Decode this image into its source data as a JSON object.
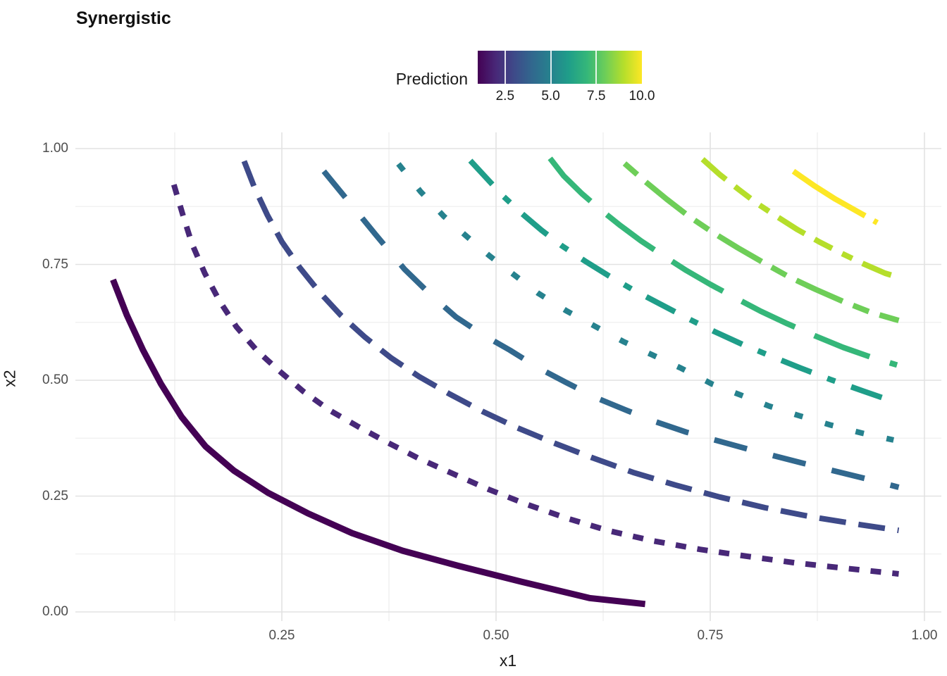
{
  "title": "Synergistic",
  "legend": {
    "title": "Prediction",
    "tick_labels": [
      "2.5",
      "5.0",
      "7.5",
      "10.0"
    ],
    "tick_values": [
      2.5,
      5.0,
      7.5,
      10.0
    ],
    "domain": [
      1.0,
      10.0
    ],
    "gradient_colors": [
      "#440154",
      "#482878",
      "#3e4a89",
      "#31688e",
      "#26828e",
      "#1f9e89",
      "#35b779",
      "#6ece58",
      "#b5de2b",
      "#fde725"
    ]
  },
  "axes": {
    "x": {
      "title": "x1",
      "tick_labels": [
        "0.25",
        "0.50",
        "0.75",
        "1.00"
      ],
      "tick_values": [
        0.25,
        0.5,
        0.75,
        1.0
      ],
      "minor_values": [
        0.125,
        0.375,
        0.625,
        0.875
      ],
      "range": [
        0.0,
        1.01
      ]
    },
    "y": {
      "title": "x2",
      "tick_labels": [
        "1.00",
        "0.75",
        "0.50",
        "0.25",
        "0.00"
      ],
      "tick_values": [
        1.0,
        0.75,
        0.5,
        0.25,
        0.0
      ],
      "minor_values": [
        0.875,
        0.625,
        0.375,
        0.125
      ],
      "range": [
        0.0,
        1.02
      ]
    }
  },
  "colors": {
    "background": "#ffffff",
    "grid_major": "#e2e2e2",
    "grid_minor": "#efefef",
    "tick_text": "#4d4d4d",
    "text": "#1a1a1a"
  },
  "chart_data": {
    "type": "line",
    "subtype": "contour",
    "title": "Synergistic",
    "xlabel": "x1",
    "ylabel": "x2",
    "legend_title": "Prediction",
    "legend_position": "top",
    "grid": true,
    "xlim": [
      0.0,
      1.01
    ],
    "ylim": [
      0.0,
      1.02
    ],
    "series": [
      {
        "name": "1",
        "level": 1,
        "color": "#440154",
        "linetype": "solid",
        "dash": "",
        "width": 9,
        "points": [
          [
            0.053,
            0.717
          ],
          [
            0.069,
            0.641
          ],
          [
            0.088,
            0.565
          ],
          [
            0.109,
            0.492
          ],
          [
            0.133,
            0.421
          ],
          [
            0.161,
            0.357
          ],
          [
            0.194,
            0.305
          ],
          [
            0.234,
            0.257
          ],
          [
            0.28,
            0.213
          ],
          [
            0.332,
            0.17
          ],
          [
            0.391,
            0.132
          ],
          [
            0.457,
            0.099
          ],
          [
            0.53,
            0.065
          ],
          [
            0.609,
            0.03
          ],
          [
            0.674,
            0.017
          ]
        ]
      },
      {
        "name": "2",
        "level": 2,
        "color": "#482878",
        "linetype": "22",
        "dash": "15 16",
        "width": 8,
        "points": [
          [
            0.124,
            0.922
          ],
          [
            0.134,
            0.86
          ],
          [
            0.145,
            0.795
          ],
          [
            0.16,
            0.731
          ],
          [
            0.177,
            0.672
          ],
          [
            0.197,
            0.615
          ],
          [
            0.221,
            0.564
          ],
          [
            0.247,
            0.52
          ],
          [
            0.275,
            0.476
          ],
          [
            0.306,
            0.435
          ],
          [
            0.339,
            0.4
          ],
          [
            0.373,
            0.366
          ],
          [
            0.41,
            0.331
          ],
          [
            0.45,
            0.298
          ],
          [
            0.492,
            0.264
          ],
          [
            0.536,
            0.232
          ],
          [
            0.583,
            0.202
          ],
          [
            0.632,
            0.175
          ],
          [
            0.684,
            0.153
          ],
          [
            0.738,
            0.135
          ],
          [
            0.793,
            0.12
          ],
          [
            0.849,
            0.106
          ],
          [
            0.908,
            0.094
          ],
          [
            0.97,
            0.082
          ]
        ]
      },
      {
        "name": "3",
        "level": 3,
        "color": "#3e4a89",
        "linetype": "42",
        "dash": "38 18",
        "width": 8,
        "points": [
          [
            0.206,
            0.973
          ],
          [
            0.218,
            0.916
          ],
          [
            0.233,
            0.857
          ],
          [
            0.25,
            0.799
          ],
          [
            0.271,
            0.743
          ],
          [
            0.294,
            0.69
          ],
          [
            0.319,
            0.64
          ],
          [
            0.347,
            0.593
          ],
          [
            0.377,
            0.549
          ],
          [
            0.41,
            0.508
          ],
          [
            0.446,
            0.47
          ],
          [
            0.484,
            0.433
          ],
          [
            0.524,
            0.398
          ],
          [
            0.567,
            0.365
          ],
          [
            0.612,
            0.333
          ],
          [
            0.66,
            0.301
          ],
          [
            0.709,
            0.274
          ],
          [
            0.761,
            0.248
          ],
          [
            0.814,
            0.225
          ],
          [
            0.869,
            0.205
          ],
          [
            0.926,
            0.188
          ],
          [
            0.97,
            0.176
          ]
        ]
      },
      {
        "name": "4",
        "level": 4,
        "color": "#31688e",
        "linetype": "44",
        "dash": "48 38",
        "width": 8,
        "points": [
          [
            0.299,
            0.951
          ],
          [
            0.327,
            0.888
          ],
          [
            0.36,
            0.813
          ],
          [
            0.393,
            0.74
          ],
          [
            0.424,
            0.684
          ],
          [
            0.453,
            0.637
          ],
          [
            0.484,
            0.599
          ],
          [
            0.516,
            0.565
          ],
          [
            0.549,
            0.527
          ],
          [
            0.582,
            0.495
          ],
          [
            0.617,
            0.462
          ],
          [
            0.651,
            0.436
          ],
          [
            0.687,
            0.41
          ],
          [
            0.722,
            0.388
          ],
          [
            0.793,
            0.352
          ],
          [
            0.858,
            0.321
          ],
          [
            0.933,
            0.287
          ],
          [
            0.97,
            0.269
          ]
        ]
      },
      {
        "name": "5",
        "level": 5,
        "color": "#26828e",
        "linetype": "13",
        "dash": "12 33",
        "width": 8,
        "points": [
          [
            0.386,
            0.967
          ],
          [
            0.412,
            0.907
          ],
          [
            0.439,
            0.854
          ],
          [
            0.466,
            0.81
          ],
          [
            0.492,
            0.769
          ],
          [
            0.52,
            0.729
          ],
          [
            0.549,
            0.688
          ],
          [
            0.582,
            0.65
          ],
          [
            0.615,
            0.617
          ],
          [
            0.648,
            0.584
          ],
          [
            0.682,
            0.555
          ],
          [
            0.716,
            0.526
          ],
          [
            0.752,
            0.492
          ],
          [
            0.787,
            0.467
          ],
          [
            0.819,
            0.444
          ],
          [
            0.853,
            0.424
          ],
          [
            0.891,
            0.403
          ],
          [
            0.927,
            0.386
          ],
          [
            0.964,
            0.371
          ]
        ]
      },
      {
        "name": "6",
        "level": 6,
        "color": "#1f9e89",
        "linetype": "1343",
        "dash": "46 24 12 24",
        "width": 8,
        "points": [
          [
            0.47,
            0.974
          ],
          [
            0.488,
            0.938
          ],
          [
            0.508,
            0.898
          ],
          [
            0.53,
            0.86
          ],
          [
            0.553,
            0.824
          ],
          [
            0.577,
            0.79
          ],
          [
            0.604,
            0.757
          ],
          [
            0.632,
            0.725
          ],
          [
            0.661,
            0.694
          ],
          [
            0.692,
            0.664
          ],
          [
            0.723,
            0.634
          ],
          [
            0.755,
            0.605
          ],
          [
            0.788,
            0.577
          ],
          [
            0.821,
            0.552
          ],
          [
            0.856,
            0.526
          ],
          [
            0.891,
            0.501
          ],
          [
            0.928,
            0.477
          ],
          [
            0.964,
            0.454
          ]
        ]
      },
      {
        "name": "7",
        "level": 7,
        "color": "#35b779",
        "linetype": "73",
        "dash": "84 30",
        "width": 8,
        "points": [
          [
            0.563,
            0.979
          ],
          [
            0.579,
            0.941
          ],
          [
            0.6,
            0.903
          ],
          [
            0.622,
            0.868
          ],
          [
            0.645,
            0.834
          ],
          [
            0.669,
            0.801
          ],
          [
            0.695,
            0.769
          ],
          [
            0.722,
            0.737
          ],
          [
            0.75,
            0.707
          ],
          [
            0.779,
            0.678
          ],
          [
            0.809,
            0.649
          ],
          [
            0.84,
            0.622
          ],
          [
            0.872,
            0.596
          ],
          [
            0.905,
            0.571
          ],
          [
            0.939,
            0.549
          ],
          [
            0.968,
            0.533
          ]
        ]
      },
      {
        "name": "8",
        "level": 8,
        "color": "#6ece58",
        "linetype": "2262",
        "dash": "24 16 72 16",
        "width": 8,
        "points": [
          [
            0.65,
            0.968
          ],
          [
            0.674,
            0.929
          ],
          [
            0.699,
            0.891
          ],
          [
            0.725,
            0.854
          ],
          [
            0.753,
            0.819
          ],
          [
            0.782,
            0.786
          ],
          [
            0.812,
            0.754
          ],
          [
            0.842,
            0.723
          ],
          [
            0.873,
            0.696
          ],
          [
            0.905,
            0.67
          ],
          [
            0.938,
            0.646
          ],
          [
            0.97,
            0.629
          ]
        ]
      },
      {
        "name": "9",
        "level": 9,
        "color": "#b5de2b",
        "linetype": "12223242",
        "dash": "44 16 28 16 16 16",
        "width": 8,
        "points": [
          [
            0.741,
            0.977
          ],
          [
            0.761,
            0.944
          ],
          [
            0.783,
            0.912
          ],
          [
            0.805,
            0.881
          ],
          [
            0.828,
            0.853
          ],
          [
            0.852,
            0.825
          ],
          [
            0.877,
            0.799
          ],
          [
            0.902,
            0.775
          ],
          [
            0.928,
            0.752
          ],
          [
            0.954,
            0.731
          ],
          [
            0.97,
            0.722
          ]
        ]
      },
      {
        "name": "10",
        "level": 10,
        "color": "#fde725",
        "linetype": "F282",
        "dash": "120 14 64 14",
        "width": 8,
        "points": [
          [
            0.847,
            0.951
          ],
          [
            0.872,
            0.919
          ],
          [
            0.896,
            0.891
          ],
          [
            0.921,
            0.865
          ],
          [
            0.945,
            0.84
          ]
        ]
      }
    ]
  }
}
